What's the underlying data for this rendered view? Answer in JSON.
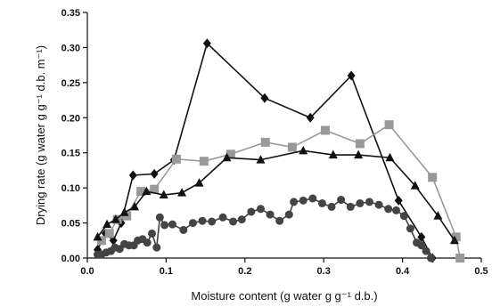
{
  "chart_data": {
    "type": "line",
    "title": "",
    "xlabel": "Moisture content (g water g g⁻¹ d.b.)",
    "ylabel": "Drying rate (g water g g⁻¹ d.b. m⁻¹)",
    "xlim": [
      0.0,
      0.5
    ],
    "ylim": [
      0.0,
      0.35
    ],
    "xticks": [
      "0.0",
      "0.1",
      "0.2",
      "0.3",
      "0.4",
      "0.5"
    ],
    "yticks": [
      "0.00",
      "0.05",
      "0.10",
      "0.15",
      "0.20",
      "0.25",
      "0.30",
      "0.35"
    ],
    "grid": false,
    "legend": "none",
    "series": [
      {
        "marker": "diamond",
        "color": "#111111",
        "x": [
          0.013,
          0.023,
          0.033,
          0.043,
          0.058,
          0.085,
          0.11,
          0.152,
          0.225,
          0.283,
          0.335,
          0.395,
          0.424,
          0.438
        ],
        "y": [
          0.012,
          0.035,
          0.025,
          0.05,
          0.118,
          0.12,
          0.14,
          0.306,
          0.228,
          0.2,
          0.26,
          0.082,
          0.03,
          0.0
        ]
      },
      {
        "marker": "square",
        "color": "#999999",
        "x": [
          0.018,
          0.028,
          0.038,
          0.05,
          0.068,
          0.085,
          0.113,
          0.148,
          0.182,
          0.226,
          0.26,
          0.302,
          0.346,
          0.383,
          0.438,
          0.468,
          0.473
        ],
        "y": [
          0.025,
          0.035,
          0.055,
          0.06,
          0.095,
          0.098,
          0.141,
          0.138,
          0.148,
          0.165,
          0.158,
          0.182,
          0.163,
          0.19,
          0.115,
          0.03,
          0.0
        ]
      },
      {
        "marker": "triangle",
        "color": "#111111",
        "x": [
          0.013,
          0.025,
          0.036,
          0.047,
          0.06,
          0.075,
          0.097,
          0.12,
          0.142,
          0.177,
          0.22,
          0.274,
          0.312,
          0.344,
          0.384,
          0.416,
          0.445,
          0.466
        ],
        "y": [
          0.03,
          0.048,
          0.055,
          0.065,
          0.073,
          0.095,
          0.09,
          0.093,
          0.107,
          0.143,
          0.14,
          0.153,
          0.147,
          0.147,
          0.143,
          0.103,
          0.06,
          0.025
        ]
      },
      {
        "marker": "circle",
        "color": "#444444",
        "x": [
          0.013,
          0.018,
          0.024,
          0.03,
          0.035,
          0.041,
          0.047,
          0.053,
          0.059,
          0.064,
          0.07,
          0.076,
          0.082,
          0.088,
          0.092,
          0.098,
          0.108,
          0.122,
          0.134,
          0.146,
          0.158,
          0.172,
          0.185,
          0.196,
          0.208,
          0.22,
          0.232,
          0.244,
          0.256,
          0.262,
          0.274,
          0.286,
          0.298,
          0.31,
          0.322,
          0.334,
          0.346,
          0.358,
          0.37,
          0.382,
          0.392,
          0.402,
          0.41,
          0.418,
          0.424,
          0.43,
          0.436
        ],
        "y": [
          0.005,
          0.005,
          0.008,
          0.01,
          0.015,
          0.013,
          0.02,
          0.018,
          0.018,
          0.025,
          0.027,
          0.022,
          0.035,
          0.015,
          0.058,
          0.047,
          0.048,
          0.04,
          0.05,
          0.053,
          0.052,
          0.058,
          0.052,
          0.055,
          0.066,
          0.07,
          0.062,
          0.053,
          0.062,
          0.08,
          0.082,
          0.085,
          0.078,
          0.073,
          0.083,
          0.073,
          0.078,
          0.08,
          0.076,
          0.07,
          0.068,
          0.06,
          0.042,
          0.022,
          0.018,
          0.01,
          0.0
        ]
      }
    ]
  }
}
